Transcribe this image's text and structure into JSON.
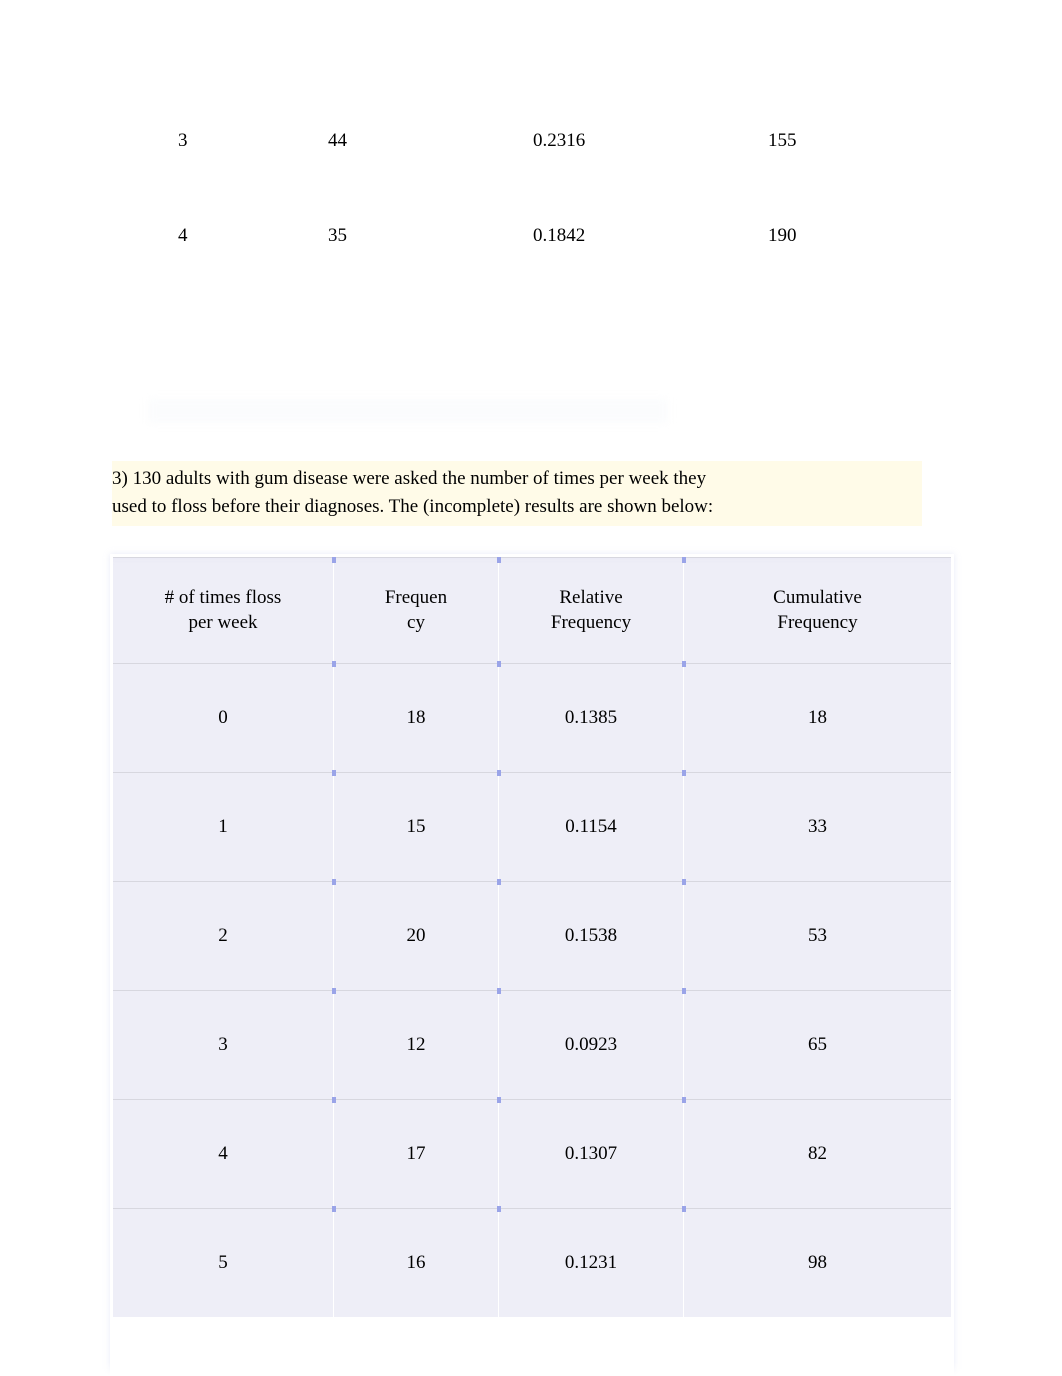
{
  "top_rows": [
    {
      "c1": "3",
      "c2": "44",
      "c3": "0.2316",
      "c4": "155"
    },
    {
      "c1": "4",
      "c2": "35",
      "c3": "0.1842",
      "c4": "190"
    }
  ],
  "question": {
    "line1": "3) 130 adults with gum disease were asked the number of times per week they",
    "line2": "used to floss before their diagnoses. The (incomplete) results are shown below:"
  },
  "freq_table": {
    "columns": [
      {
        "l1": "# of times floss",
        "l2": "per week"
      },
      {
        "l1": "Frequen",
        "l2": "cy"
      },
      {
        "l1": "Relative",
        "l2": "Frequency"
      },
      {
        "l1": "Cumulative",
        "l2": "Frequency"
      }
    ],
    "rows": [
      [
        "0",
        "18",
        "0.1385",
        "18"
      ],
      [
        "1",
        "15",
        "0.1154",
        "33"
      ],
      [
        "2",
        "20",
        "0.1538",
        "53"
      ],
      [
        "3",
        "12",
        "0.0923",
        "65"
      ],
      [
        "4",
        "17",
        "0.1307",
        "82"
      ],
      [
        "5",
        "16",
        "0.1231",
        "98"
      ]
    ],
    "header_bg": "#eeeef7",
    "cell_bg": "#eeeef7",
    "separator_color": "#d7d7df",
    "tick_color": "#9aa4e8",
    "font_size_pt": 14
  },
  "highlight_bg": "#fffbe8"
}
